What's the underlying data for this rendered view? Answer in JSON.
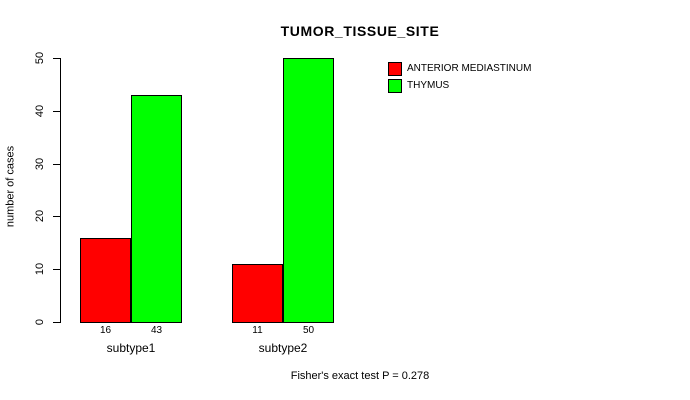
{
  "title": "TUMOR_TISSUE_SITE",
  "footer": "Fisher's exact test P = 0.278",
  "colors": {
    "background": "#ffffff",
    "axis": "#000000",
    "anterior_mediastinum": "#ff0000",
    "thymus": "#00ff00"
  },
  "legend": {
    "entries": [
      {
        "label": "ANTERIOR MEDIASTINUM",
        "color": "#ff0000"
      },
      {
        "label": "THYMUS",
        "color": "#00ff00"
      }
    ]
  },
  "chart_data": {
    "type": "bar",
    "title": "TUMOR_TISSUE_SITE",
    "categories": [
      "subtype1",
      "subtype2"
    ],
    "series": [
      {
        "name": "ANTERIOR MEDIASTINUM",
        "color": "#ff0000",
        "values": [
          16,
          11
        ]
      },
      {
        "name": "THYMUS",
        "color": "#00ff00",
        "values": [
          43,
          50
        ]
      }
    ],
    "bar_value_labels": [
      [
        "16",
        "43"
      ],
      [
        "11",
        "50"
      ]
    ],
    "xlabel": "",
    "ylabel": "number of cases",
    "ylim": [
      0,
      50
    ],
    "yticks": [
      0,
      10,
      20,
      30,
      40,
      50
    ],
    "grid": false,
    "legend_position": "inside-top-right",
    "annotation": "Fisher's exact test P = 0.278"
  }
}
